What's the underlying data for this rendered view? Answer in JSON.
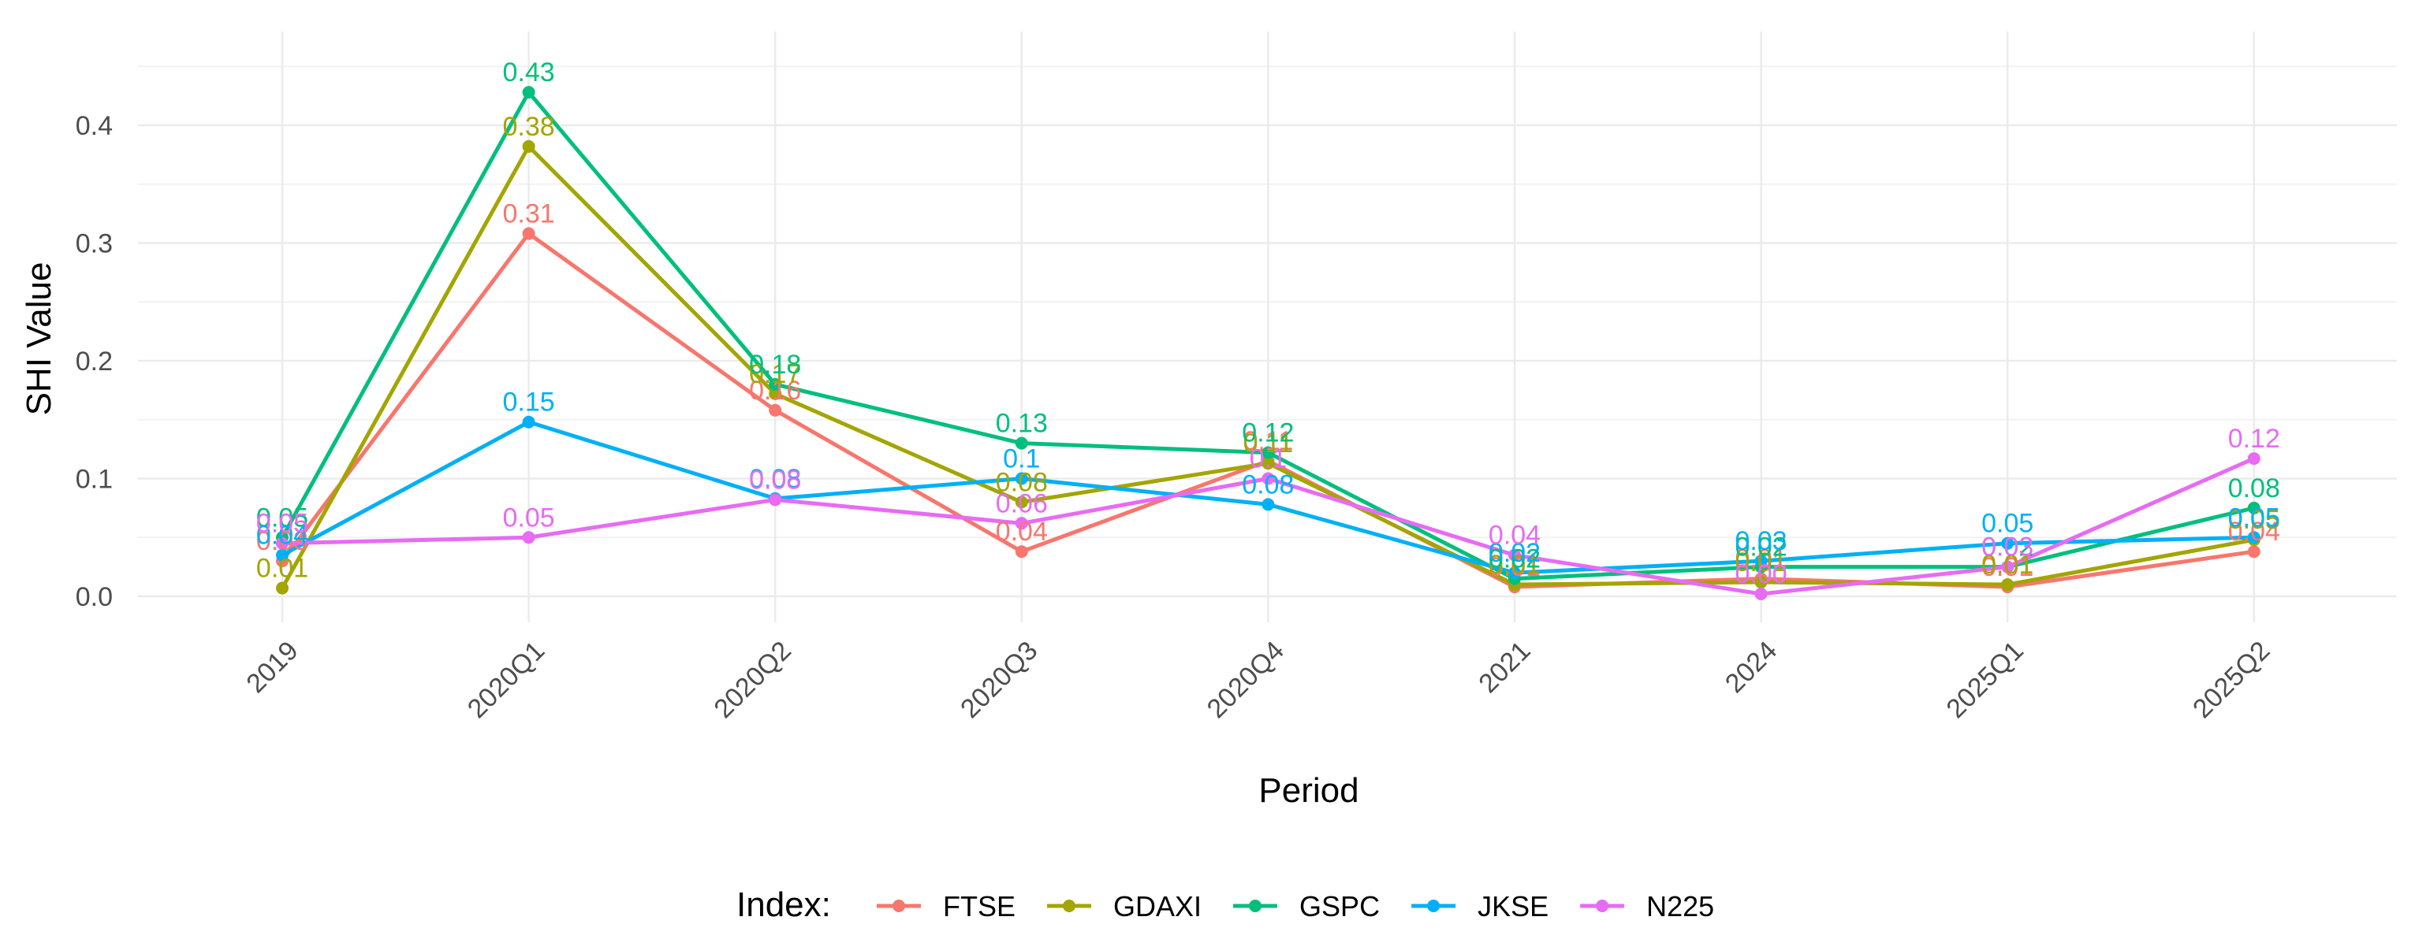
{
  "chart_data": {
    "type": "line",
    "title": "",
    "xlabel": "Period",
    "ylabel": "SHI Value",
    "categories": [
      "2019",
      "2020Q1",
      "2020Q2",
      "2020Q3",
      "2020Q4",
      "2021",
      "2024",
      "2025Q1",
      "2025Q2"
    ],
    "yticks": [
      0.0,
      0.1,
      0.2,
      0.3,
      0.4
    ],
    "ytick_labels": [
      "0.0",
      "0.1",
      "0.2",
      "0.3",
      "0.4"
    ],
    "ylim": [
      -0.02,
      0.45
    ],
    "grid": true,
    "legend": {
      "title": "Index:",
      "position": "bottom"
    },
    "series": [
      {
        "name": "FTSE",
        "color": "#F8766D",
        "values": [
          0.03,
          0.308,
          0.158,
          0.038,
          0.115,
          0.008,
          0.015,
          0.008,
          0.038
        ],
        "labels": [
          "0.03",
          "0.31",
          "0.16",
          "0.04",
          "0.11",
          "0.01",
          "0.01",
          "0.01",
          "0.04"
        ]
      },
      {
        "name": "GDAXI",
        "color": "#A3A500",
        "values": [
          0.007,
          0.382,
          0.172,
          0.08,
          0.113,
          0.01,
          0.012,
          0.01,
          0.048
        ],
        "labels": [
          "0.01",
          "0.38",
          "0.17",
          "0.08",
          "0.11",
          "0.01",
          "0.01",
          "0.01",
          "0.05"
        ]
      },
      {
        "name": "GSPC",
        "color": "#00BF7D",
        "values": [
          0.05,
          0.428,
          0.18,
          0.13,
          0.122,
          0.015,
          0.025,
          0.025,
          0.075
        ],
        "labels": [
          "0.05",
          "0.43",
          "0.18",
          "0.13",
          "0.12",
          "0.02",
          "0.02",
          "0.02",
          "0.08"
        ]
      },
      {
        "name": "JKSE",
        "color": "#00B0F6",
        "values": [
          0.035,
          0.148,
          0.083,
          0.1,
          0.078,
          0.02,
          0.03,
          0.045,
          0.05
        ],
        "labels": [
          "0.04",
          "0.15",
          "0.08",
          "0.1",
          "0.08",
          "0.02",
          "0.03",
          "0.05",
          "0.05"
        ]
      },
      {
        "name": "N225",
        "color": "#E76BF3",
        "values": [
          0.045,
          0.05,
          0.082,
          0.062,
          0.1,
          0.035,
          0.002,
          0.025,
          0.117
        ],
        "labels": [
          "0.05",
          "0.05",
          "0.08",
          "0.06",
          "0.1",
          "0.04",
          "0.00",
          "0.03",
          "0.12"
        ]
      }
    ]
  }
}
